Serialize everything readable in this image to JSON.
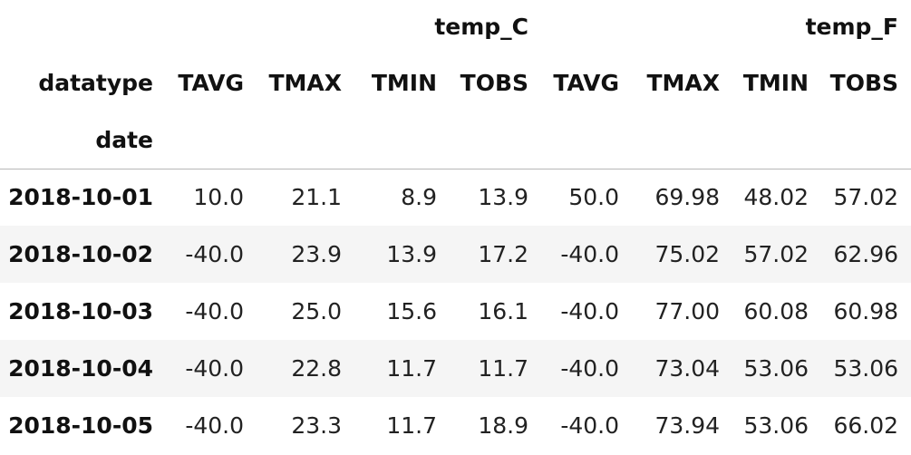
{
  "table": {
    "column_groups": [
      "temp_C",
      "temp_F"
    ],
    "columns_name_label": "datatype",
    "index_name": "date",
    "columns": [
      "TAVG",
      "TMAX",
      "TMIN",
      "TOBS",
      "TAVG",
      "TMAX",
      "TMIN",
      "TOBS"
    ],
    "rows": [
      {
        "date": "2018-10-01",
        "values": [
          "10.0",
          "21.1",
          "8.9",
          "13.9",
          "50.0",
          "69.98",
          "48.02",
          "57.02"
        ]
      },
      {
        "date": "2018-10-02",
        "values": [
          "-40.0",
          "23.9",
          "13.9",
          "17.2",
          "-40.0",
          "75.02",
          "57.02",
          "62.96"
        ]
      },
      {
        "date": "2018-10-03",
        "values": [
          "-40.0",
          "25.0",
          "15.6",
          "16.1",
          "-40.0",
          "77.00",
          "60.08",
          "60.98"
        ]
      },
      {
        "date": "2018-10-04",
        "values": [
          "-40.0",
          "22.8",
          "11.7",
          "11.7",
          "-40.0",
          "73.04",
          "53.06",
          "53.06"
        ]
      },
      {
        "date": "2018-10-05",
        "values": [
          "-40.0",
          "23.3",
          "11.7",
          "18.9",
          "-40.0",
          "73.94",
          "53.06",
          "66.02"
        ]
      }
    ]
  }
}
